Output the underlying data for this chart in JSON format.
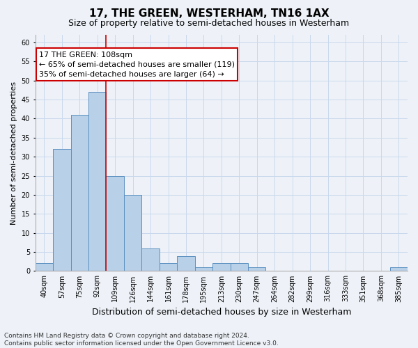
{
  "title": "17, THE GREEN, WESTERHAM, TN16 1AX",
  "subtitle": "Size of property relative to semi-detached houses in Westerham",
  "xlabel": "Distribution of semi-detached houses by size in Westerham",
  "ylabel": "Number of semi-detached properties",
  "categories": [
    "40sqm",
    "57sqm",
    "75sqm",
    "92sqm",
    "109sqm",
    "126sqm",
    "144sqm",
    "161sqm",
    "178sqm",
    "195sqm",
    "213sqm",
    "230sqm",
    "247sqm",
    "264sqm",
    "282sqm",
    "299sqm",
    "316sqm",
    "333sqm",
    "351sqm",
    "368sqm",
    "385sqm"
  ],
  "values": [
    2,
    32,
    41,
    47,
    25,
    20,
    6,
    2,
    4,
    1,
    2,
    2,
    1,
    0,
    0,
    0,
    0,
    0,
    0,
    0,
    1
  ],
  "bar_color": "#b8d0e8",
  "bar_edge_color": "#5a8fc0",
  "grid_color": "#c8d8ec",
  "background_color": "#eef2f8",
  "annotation_line1": "17 THE GREEN: 108sqm",
  "annotation_line2": "← 65% of semi-detached houses are smaller (119)",
  "annotation_line3": "35% of semi-detached houses are larger (64) →",
  "annotation_box_color": "#ffffff",
  "annotation_box_edge_color": "#cc0000",
  "vline_color": "#cc0000",
  "vline_x_idx": 3,
  "ylim": [
    0,
    62
  ],
  "yticks": [
    0,
    5,
    10,
    15,
    20,
    25,
    30,
    35,
    40,
    45,
    50,
    55,
    60
  ],
  "footnote": "Contains HM Land Registry data © Crown copyright and database right 2024.\nContains public sector information licensed under the Open Government Licence v3.0.",
  "title_fontsize": 11,
  "subtitle_fontsize": 9,
  "xlabel_fontsize": 9,
  "ylabel_fontsize": 8,
  "tick_fontsize": 7,
  "annot_fontsize": 8
}
